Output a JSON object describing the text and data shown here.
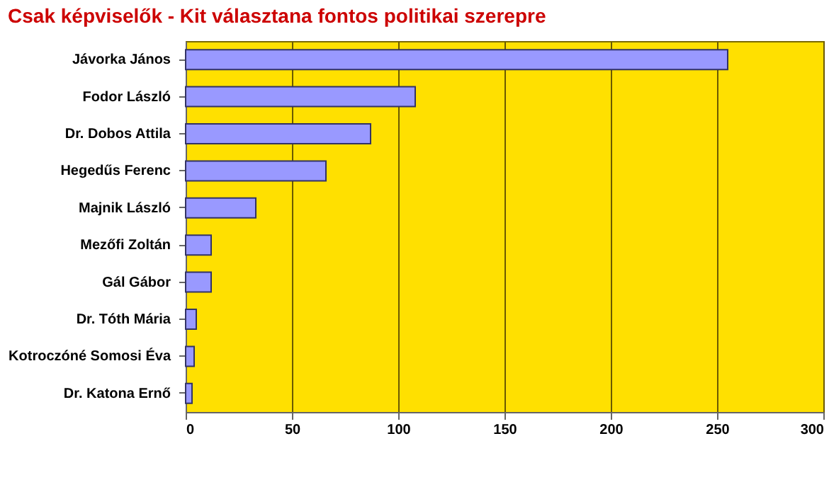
{
  "chart_data": {
    "type": "bar",
    "orientation": "horizontal",
    "title": "Csak képviselők - Kit választana fontos politikai szerepre",
    "categories": [
      "Jávorka János",
      "Fodor László",
      "Dr. Dobos Attila",
      "Hegedűs Ferenc",
      "Majnik László",
      "Mezőfi Zoltán",
      "Gál Gábor",
      "Dr. Tóth Mária",
      "Kotroczóné Somosi Éva",
      "Dr. Katona Ernő"
    ],
    "values": [
      255,
      108,
      87,
      66,
      33,
      12,
      12,
      5,
      4,
      3
    ],
    "color": "#9999ff",
    "xlim": [
      0,
      300
    ],
    "xticks": [
      0,
      50,
      100,
      150,
      200,
      250,
      300
    ],
    "grid": "x"
  }
}
